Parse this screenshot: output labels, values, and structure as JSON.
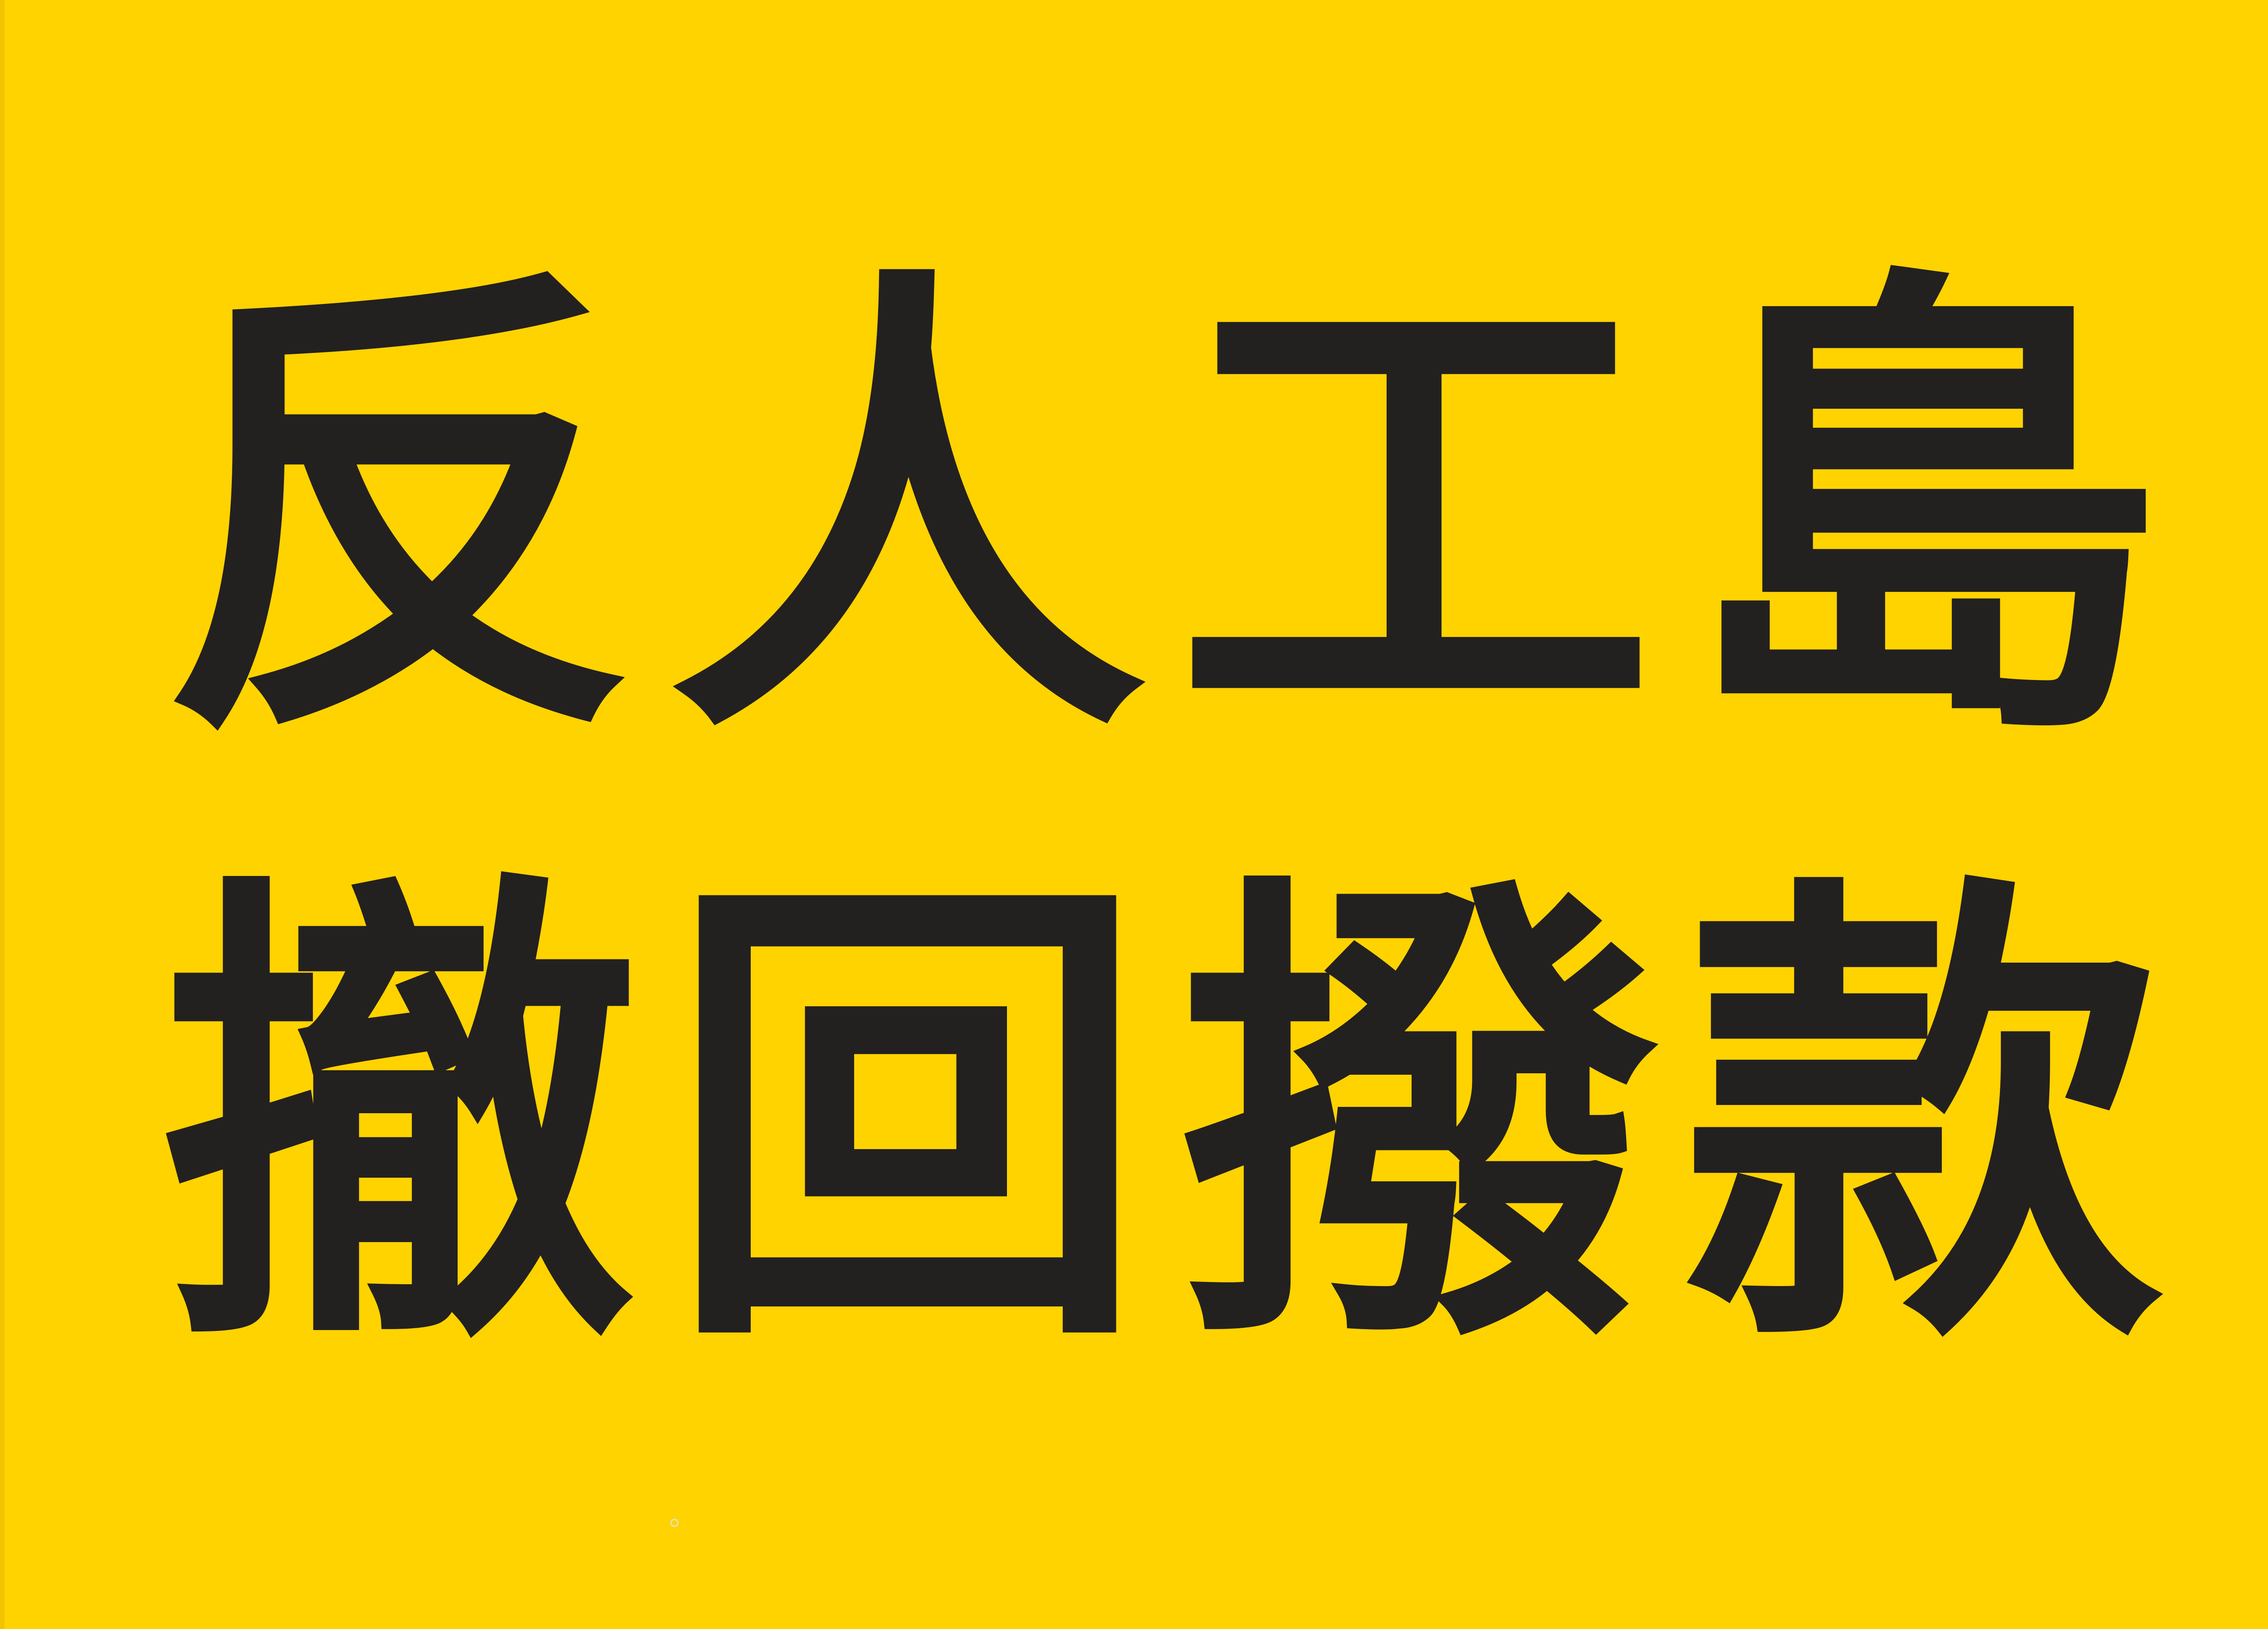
{
  "sign": {
    "background_color": "#ffd300",
    "text_color": "#232020",
    "line1": [
      "反",
      "人",
      "工",
      "島"
    ],
    "line2": [
      "撤",
      "回",
      "撥",
      "款"
    ]
  }
}
